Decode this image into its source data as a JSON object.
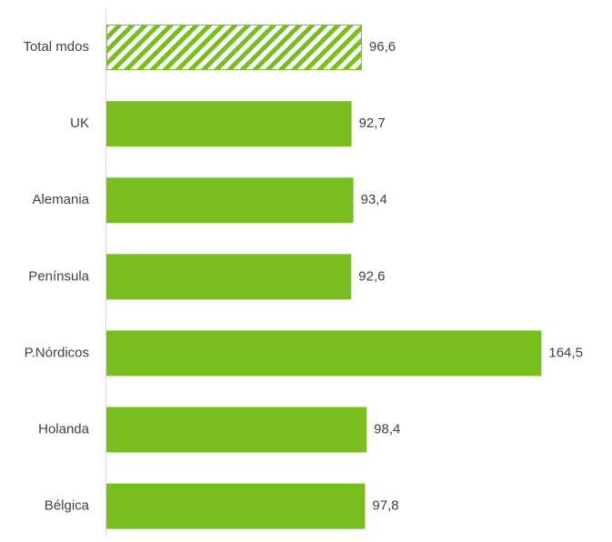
{
  "chart_data": {
    "type": "bar",
    "orientation": "horizontal",
    "categories": [
      "Total mdos",
      "UK",
      "Alemania",
      "Península",
      "P.Nórdicos",
      "Holanda",
      "Bélgica"
    ],
    "values": [
      96.6,
      92.7,
      93.4,
      92.6,
      164.5,
      98.4,
      97.8
    ],
    "value_labels": [
      "96,6",
      "92,7",
      "93,4",
      "92,6",
      "164,5",
      "98,4",
      "97,8"
    ],
    "highlight": [
      true,
      false,
      false,
      false,
      false,
      false,
      false
    ],
    "xlim": [
      0,
      185
    ],
    "grid": false,
    "legend": "none",
    "title": "",
    "xlabel": "",
    "ylabel": "",
    "colors": {
      "bar": "#78BE20",
      "hatch_bg": "#ffffff",
      "axis": "#d9d9d9",
      "text": "#404040"
    }
  }
}
